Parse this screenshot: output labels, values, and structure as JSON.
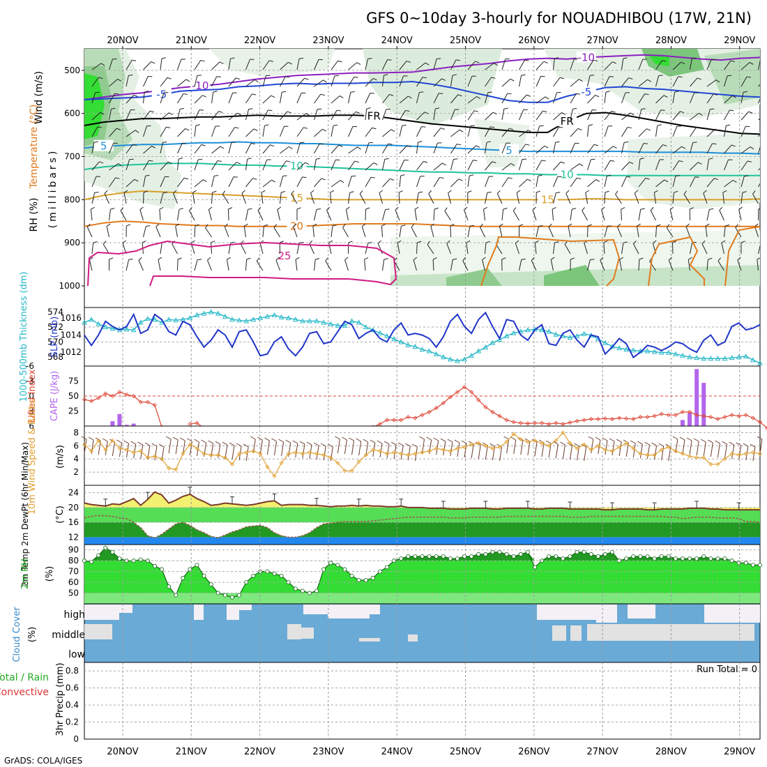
{
  "title": "GFS 0~10day 3-hourly for NOUADHIBOU (17W, 21N)",
  "credit": "GrADS: COLA/IGES",
  "dates": [
    "20NOV",
    "21NOV",
    "22NOV",
    "23NOV",
    "24NOV",
    "25NOV",
    "26NOV",
    "27NOV",
    "28NOV",
    "29NOV"
  ],
  "colors": {
    "purple": "#8a1fbf",
    "blue": "#1f46d6",
    "lightblue": "#1e8fd8",
    "teal": "#1fc39a",
    "gold": "#d9a02a",
    "orange": "#e07a1c",
    "magenta": "#d11a82",
    "black": "#000000",
    "thickness": "#26b8c8",
    "slp": "#1f35c8",
    "cape": "#b366ec",
    "li": "#dd4433",
    "wind10": "#e0a030",
    "temp_fill": "#f2f070",
    "temp_line": "#7a3b28",
    "green_light": "#a6f2a6",
    "green_mid": "#33dd33",
    "green_dark": "#229922",
    "cloud_blue": "#6aaad6",
    "cloud_white": "#f4f0f6",
    "cloud_gray": "#e2e2e2"
  },
  "chart_data": [
    {
      "id": "upper-air",
      "type": "line",
      "ylabel_parts": [
        "RH (%)",
        "Temperature (°C)",
        "Wind (m/s)"
      ],
      "ylabel2": "(millibars)",
      "yticks": [
        500,
        600,
        700,
        800,
        900,
        1000
      ],
      "ylim": [
        450,
        1000
      ],
      "series": [
        {
          "name": "-10",
          "color": "purple",
          "level": [
            568,
            562,
            556,
            552,
            546,
            540,
            536,
            532,
            526,
            520,
            516,
            512,
            510,
            508,
            506,
            506,
            505,
            504,
            498,
            492,
            488,
            484,
            478,
            474,
            472,
            474,
            470,
            468,
            466,
            464,
            466,
            470,
            474,
            476,
            472,
            470
          ]
        },
        {
          "name": "-5",
          "color": "blue",
          "level": [
            568,
            566,
            564,
            562,
            556,
            548,
            546,
            544,
            538,
            536,
            532,
            530,
            532,
            530,
            530,
            528,
            528,
            526,
            532,
            540,
            550,
            560,
            570,
            574,
            574,
            560,
            550,
            540,
            538,
            542,
            544,
            548,
            552,
            556,
            560,
            562
          ]
        },
        {
          "name": "FR",
          "color": "black",
          "level": [
            628,
            620,
            616,
            612,
            612,
            610,
            608,
            608,
            606,
            604,
            606,
            606,
            606,
            604,
            604,
            606,
            612,
            618,
            624,
            628,
            632,
            636,
            640,
            644,
            644,
            618,
            600,
            598,
            604,
            612,
            620,
            628,
            634,
            640,
            646,
            648
          ]
        },
        {
          "name": "5",
          "color": "lightblue",
          "level": [
            680,
            676,
            674,
            672,
            672,
            670,
            668,
            668,
            666,
            668,
            668,
            670,
            670,
            672,
            674,
            674,
            674,
            676,
            678,
            680,
            682,
            684,
            686,
            688,
            688,
            688,
            688,
            688,
            688,
            690,
            690,
            690,
            690,
            692,
            692,
            694
          ]
        },
        {
          "name": "10",
          "color": "teal",
          "level": [
            730,
            724,
            720,
            718,
            716,
            716,
            716,
            718,
            720,
            720,
            722,
            722,
            724,
            726,
            728,
            730,
            732,
            734,
            736,
            736,
            738,
            738,
            740,
            740,
            742,
            742,
            742,
            744,
            744,
            744,
            744,
            744,
            744,
            744,
            744,
            744
          ]
        },
        {
          "name": "15",
          "color": "gold",
          "level": [
            800,
            790,
            784,
            780,
            782,
            784,
            786,
            788,
            790,
            792,
            794,
            796,
            798,
            800,
            800,
            800,
            800,
            800,
            800,
            800,
            800,
            800,
            800,
            800,
            800,
            800,
            798,
            798,
            800,
            800,
            800,
            800,
            800,
            800,
            800,
            798
          ]
        },
        {
          "name": "20",
          "color": "orange",
          "level": [
            862,
            854,
            850,
            852,
            856,
            858,
            860,
            860,
            862,
            862,
            862,
            862,
            860,
            858,
            856,
            856,
            856,
            856,
            858,
            860,
            862,
            862,
            862,
            862,
            862,
            862,
            862,
            862,
            862,
            862,
            862,
            862,
            862,
            862,
            862,
            862
          ]
        }
      ]
    },
    {
      "id": "thickness-slp",
      "type": "line",
      "ylabel_left": "1000-500mb Thickness (dm)",
      "ylabel_right": "SLP (mb)",
      "left_ticks": [
        568,
        570,
        572,
        574
      ],
      "right_ticks": [
        1012,
        1014,
        1016
      ],
      "series": [
        {
          "name": "Thickness",
          "color": "thickness",
          "values": [
            572.6,
            573.0,
            572.4,
            572.0,
            571.8,
            571.6,
            571.7,
            571.6,
            572.6,
            573.1,
            573.0,
            572.6,
            573.0,
            572.9,
            573.0,
            573.2,
            573.6,
            573.8,
            574.0,
            573.8,
            573.4,
            573.0,
            572.9,
            572.8,
            573.0,
            573.2,
            573.4,
            573.6,
            573.3,
            573.2,
            573.0,
            572.8,
            572.8,
            572.8,
            572.6,
            572.4,
            572.2,
            572.2,
            572.8,
            572.6,
            572.0,
            571.6,
            571.2,
            570.8,
            570.4,
            570.0,
            569.6,
            569.4,
            569.0,
            568.8,
            568.4,
            568.0,
            567.7,
            567.5,
            567.7,
            568.2,
            568.8,
            569.3,
            569.9,
            570.3,
            570.8,
            571.2,
            571.4,
            571.6,
            571.7,
            571.6,
            571.4,
            571.0,
            570.8,
            570.6,
            570.8,
            571.1,
            570.9,
            570.4,
            569.9,
            569.4,
            569.2,
            569.0,
            568.9,
            568.8,
            568.8,
            568.7,
            568.6,
            568.6,
            568.4,
            568.2,
            568.0,
            567.9,
            567.8,
            567.8,
            567.8,
            567.8,
            567.9,
            568.0,
            568.1,
            567.6,
            567.2
          ]
        },
        {
          "name": "SLP",
          "color": "slp",
          "values": [
            1014.0,
            1012.8,
            1014.0,
            1015.6,
            1015.0,
            1014.6,
            1015.0,
            1016.4,
            1014.2,
            1014.6,
            1016.4,
            1015.8,
            1014.4,
            1014.0,
            1015.6,
            1015.2,
            1013.8,
            1012.6,
            1013.4,
            1014.6,
            1014.0,
            1012.6,
            1014.4,
            1014.6,
            1013.2,
            1011.6,
            1011.8,
            1013.2,
            1013.8,
            1012.4,
            1011.6,
            1012.6,
            1014.2,
            1014.4,
            1013.0,
            1013.2,
            1014.4,
            1015.6,
            1015.2,
            1013.6,
            1014.2,
            1014.6,
            1013.6,
            1013.2,
            1014.6,
            1015.4,
            1014.0,
            1014.2,
            1014.0,
            1013.6,
            1012.6,
            1013.8,
            1015.6,
            1016.4,
            1015.0,
            1014.2,
            1015.8,
            1016.6,
            1015.0,
            1013.6,
            1015.8,
            1015.6,
            1014.0,
            1013.4,
            1014.6,
            1015.2,
            1013.0,
            1012.8,
            1014.2,
            1014.6,
            1013.4,
            1012.6,
            1014.0,
            1013.8,
            1011.8,
            1012.6,
            1013.6,
            1013.0,
            1011.4,
            1012.0,
            1012.8,
            1012.6,
            1012.2,
            1012.6,
            1013.2,
            1013.0,
            1012.4,
            1012.0,
            1013.4,
            1014.0,
            1012.8,
            1013.2,
            1015.0,
            1015.4,
            1014.6,
            1014.8,
            1015.2
          ]
        }
      ]
    },
    {
      "id": "li-cape",
      "type": "bar",
      "ylabel_left": "Lifted Index",
      "ylabel_right": "CAPE (J/kg)",
      "li_ticks": [
        -6,
        -3,
        0,
        3,
        6
      ],
      "cape_ticks": [
        25,
        50,
        75
      ],
      "li_values": [
        0.7,
        1.0,
        0.4,
        -0.5,
        0.0,
        -0.8,
        -0.3,
        0.0,
        1.2,
        1.2,
        1.8,
        6.2,
        null,
        null,
        null,
        5.6,
        5.4,
        6.4,
        null,
        null,
        null,
        null,
        null,
        null,
        null,
        null,
        null,
        null,
        null,
        null,
        null,
        null,
        null,
        null,
        null,
        null,
        null,
        null,
        null,
        null,
        null,
        6.2,
        5.6,
        4.8,
        4.8,
        4.8,
        4.2,
        4.4,
        3.8,
        3.2,
        2.4,
        1.4,
        0.2,
        -0.8,
        -1.8,
        -0.8,
        0.8,
        2.2,
        3.2,
        4.0,
        4.8,
        5.2,
        5.4,
        5.5,
        5.4,
        5.4,
        5.6,
        5.4,
        5.6,
        5.3,
        5.0,
        4.8,
        4.6,
        4.6,
        4.5,
        4.6,
        4.4,
        4.5,
        4.6,
        4.2,
        4.2,
        4.0,
        3.6,
        3.8,
        3.8,
        3.2,
        3.2,
        3.8,
        4.0,
        4.2,
        4.6,
        4.2,
        3.8,
        4.0,
        3.8,
        4.4,
        5.2,
        6.4,
        7.0
      ],
      "cape_values": [
        0,
        0,
        0,
        0,
        8,
        20,
        2,
        4,
        0,
        0,
        0,
        0,
        0,
        0,
        0,
        0,
        0,
        0,
        0,
        0,
        0,
        0,
        0,
        0,
        0,
        0,
        0,
        0,
        0,
        0,
        0,
        0,
        0,
        0,
        0,
        0,
        0,
        0,
        0,
        0,
        0,
        0,
        0,
        0,
        0,
        0,
        0,
        0,
        0,
        0,
        0,
        0,
        0,
        0,
        0,
        0,
        0,
        0,
        0,
        0,
        0,
        0,
        0,
        0,
        0,
        0,
        0,
        0,
        0,
        0,
        0,
        0,
        0,
        0,
        0,
        0,
        0,
        0,
        0,
        0,
        0,
        0,
        0,
        0,
        0,
        10,
        22,
        95,
        72,
        0,
        0,
        0,
        0,
        0,
        0,
        0,
        0
      ]
    },
    {
      "id": "wind10m",
      "type": "line",
      "ylabel": "10m Wind Speed & Barbs",
      "unit": "(m/s)",
      "yticks": [
        2,
        4,
        6,
        8
      ],
      "values": [
        6.2,
        5.2,
        6.8,
        5.4,
        6.8,
        5.6,
        5.4,
        5.0,
        5.2,
        4.2,
        4.4,
        4.0,
        2.6,
        2.4,
        4.8,
        6.2,
        5.6,
        4.8,
        4.6,
        4.6,
        4.2,
        3.2,
        4.8,
        5.0,
        5.2,
        4.8,
        2.8,
        1.4,
        3.4,
        4.8,
        5.0,
        4.8,
        5.0,
        4.8,
        4.6,
        4.2,
        3.4,
        2.2,
        2.2,
        3.6,
        4.6,
        5.4,
        5.2,
        4.8,
        5.0,
        4.8,
        4.6,
        4.8,
        5.0,
        5.2,
        5.6,
        5.4,
        5.2,
        5.6,
        5.8,
        6.2,
        6.4,
        6.0,
        5.6,
        5.8,
        6.6,
        7.8,
        7.0,
        6.6,
        6.8,
        6.4,
        6.0,
        6.8,
        8.0,
        6.4,
        5.6,
        6.2,
        5.4,
        6.0,
        5.4,
        5.2,
        5.8,
        6.4,
        5.6,
        4.8,
        4.6,
        4.6,
        5.4,
        5.8,
        5.2,
        4.8,
        4.4,
        4.2,
        4.2,
        3.2,
        3.2,
        4.0,
        4.8,
        4.6,
        4.8,
        5.0,
        4.8
      ]
    },
    {
      "id": "temperature",
      "type": "area",
      "ylabel": "2m Temp 2m DewPt (6hr Min/Max)",
      "unit": "(°C)",
      "yticks": [
        12,
        16,
        20,
        24
      ],
      "temp": [
        21.2,
        20.8,
        20.6,
        20.4,
        21.0,
        20.8,
        21.6,
        22.4,
        20.6,
        22.2,
        24.2,
        23.4,
        21.2,
        22.0,
        23.0,
        23.6,
        22.4,
        21.6,
        20.6,
        20.8,
        21.2,
        21.0,
        20.8,
        20.6,
        20.8,
        21.2,
        21.6,
        21.8,
        20.6,
        20.8,
        20.8,
        20.8,
        20.6,
        20.6,
        20.4,
        20.2,
        20.4,
        20.4,
        20.6,
        20.4,
        20.6,
        20.4,
        20.4,
        20.2,
        20.2,
        20.4,
        20.0,
        20.0,
        20.0,
        19.8,
        19.8,
        19.8,
        19.6,
        19.6,
        19.6,
        19.8,
        19.8,
        19.8,
        19.6,
        19.6,
        19.8,
        19.8,
        19.8,
        19.8,
        19.6,
        19.6,
        19.8,
        19.8,
        19.8,
        19.6,
        19.6,
        19.6,
        19.6,
        19.6,
        19.4,
        19.4,
        19.6,
        19.6,
        19.6,
        19.6,
        19.4,
        19.4,
        19.6,
        19.6,
        19.6,
        19.6,
        19.8,
        19.8,
        19.8,
        19.6,
        19.6,
        19.4,
        19.4,
        19.4,
        19.4,
        19.4,
        19.4
      ],
      "dewpt": [
        17.2,
        17.6,
        17.8,
        17.8,
        17.6,
        17.2,
        17.0,
        16.0,
        14.6,
        12.4,
        11.8,
        12.8,
        14.2,
        15.6,
        16.0,
        15.2,
        14.0,
        13.2,
        12.2,
        11.8,
        12.6,
        13.4,
        14.0,
        14.8,
        15.0,
        15.2,
        14.6,
        13.2,
        12.4,
        12.0,
        12.0,
        12.4,
        13.2,
        14.6,
        15.6,
        15.8,
        16.0,
        16.2,
        16.2,
        16.2,
        16.2,
        16.4,
        16.6,
        16.8,
        17.0,
        17.2,
        17.4,
        17.4,
        17.4,
        17.4,
        17.4,
        17.4,
        17.2,
        17.2,
        17.2,
        17.4,
        17.4,
        17.4,
        17.4,
        17.4,
        17.6,
        17.6,
        17.6,
        17.6,
        17.6,
        17.6,
        17.6,
        17.6,
        17.6,
        17.4,
        17.4,
        17.4,
        17.6,
        17.6,
        17.6,
        17.6,
        17.6,
        17.6,
        17.6,
        17.6,
        17.6,
        17.6,
        17.6,
        17.4,
        17.4,
        17.0,
        17.2,
        17.4,
        17.4,
        17.4,
        17.2,
        17.2,
        17.2,
        17.0,
        16.2,
        16.2,
        16.0
      ]
    },
    {
      "id": "rh2m",
      "type": "area",
      "ylabel": "2m RH",
      "unit": "(%)",
      "yticks": [
        50,
        60,
        70,
        80,
        90
      ],
      "values": [
        80,
        79,
        85,
        92,
        88,
        82,
        80,
        80,
        81,
        80,
        75,
        72,
        56,
        48,
        64,
        72,
        76,
        66,
        58,
        50,
        48,
        46,
        48,
        60,
        66,
        70,
        70,
        68,
        66,
        60,
        54,
        52,
        50,
        52,
        72,
        78,
        76,
        72,
        66,
        62,
        62,
        64,
        70,
        74,
        80,
        82,
        84,
        84,
        84,
        84,
        84,
        84,
        82,
        82,
        84,
        84,
        86,
        86,
        88,
        88,
        86,
        84,
        86,
        88,
        74,
        80,
        84,
        84,
        82,
        84,
        88,
        88,
        86,
        84,
        86,
        88,
        80,
        82,
        84,
        84,
        84,
        82,
        84,
        84,
        82,
        82,
        82,
        82,
        84,
        82,
        82,
        82,
        80,
        78,
        78,
        76,
        76
      ]
    },
    {
      "id": "clouds",
      "type": "heatmap",
      "ylabel": "Cloud Cover",
      "unit": "(%)",
      "rows": [
        "high",
        "middle",
        "low"
      ]
    },
    {
      "id": "precip",
      "type": "bar",
      "ylabel_left": "Total / Rain",
      "ylabel_left2": "Convective",
      "ylabel": "3hr Precip (mm)",
      "yticks": [
        0,
        0.2,
        0.4,
        0.6,
        0.8
      ],
      "run_total": "Run Total = 0",
      "values": []
    }
  ]
}
